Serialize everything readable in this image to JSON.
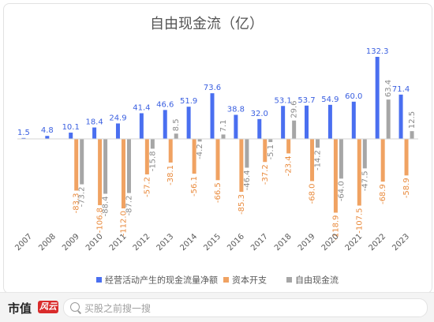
{
  "chart_data": {
    "type": "bar",
    "title": "自由现金流（亿）",
    "xlabel": "",
    "ylabel": "",
    "ylim": [
      -140,
      140
    ],
    "grid": false,
    "legend_position": "bottom",
    "categories": [
      "2007",
      "2008",
      "2009",
      "2010",
      "2011",
      "2012",
      "2013",
      "2014",
      "2015",
      "2016",
      "2017",
      "2018",
      "2019",
      "2020",
      "2021",
      "2022",
      "2023"
    ],
    "series": [
      {
        "name": "经营活动产生的现金流量净额",
        "color": "#4a6ff0",
        "values": [
          1.5,
          4.8,
          10.1,
          18.4,
          24.9,
          41.4,
          46.6,
          51.9,
          73.6,
          38.8,
          32.0,
          53.1,
          53.7,
          54.9,
          60.0,
          132.3,
          71.4
        ],
        "labels": [
          "1.5",
          "4.8",
          "10.1",
          "18.4",
          "24.9",
          "41.4",
          "46.6",
          "51.9",
          "73.6",
          "38.8",
          "32.0",
          "53.1",
          "53.7",
          "54.9",
          "60.0",
          "132.3",
          "71.4"
        ]
      },
      {
        "name": "资本开支",
        "color": "#f0a262",
        "values": [
          null,
          null,
          -83.3,
          -106.8,
          -112.0,
          -57.2,
          -38.1,
          -56.1,
          -66.5,
          -85.3,
          -37.2,
          -23.4,
          -68.0,
          -118.9,
          -107.5,
          -68.9,
          -58.9
        ],
        "labels": [
          "",
          "",
          "-83.3",
          "-106.8",
          "-112.0",
          "-57.2",
          "-38.1",
          "-56.1",
          "-66.5",
          "-85.3",
          "-37.2",
          "-23.4",
          "-68.0",
          "-118.9",
          "-107.5",
          "-68.9",
          "-58.9"
        ]
      },
      {
        "name": "自由现金流",
        "color": "#a6a6a6",
        "values": [
          null,
          null,
          -73.2,
          -88.4,
          -87.2,
          -15.8,
          8.5,
          -4.2,
          7.1,
          -46.4,
          -5.1,
          29.6,
          -14.2,
          -64.0,
          -47.5,
          63.4,
          12.5
        ],
        "labels": [
          "",
          "",
          "-73.2",
          "-88.4",
          "-87.2",
          "-15.8",
          "8.5",
          "-4.2",
          "7.1",
          "-46.4",
          "-5.1",
          "29.6",
          "-14.2",
          "-64.0",
          "-47.5",
          "63.4",
          "12.5"
        ]
      }
    ]
  },
  "footer": {
    "brand": "市值",
    "brand_logo": "风云",
    "search_placeholder": "买股之前搜一搜"
  },
  "colors": {
    "label_blue": "#3a5fe0",
    "label_orange": "#e98a3c",
    "label_gray": "#8a8a8a"
  }
}
